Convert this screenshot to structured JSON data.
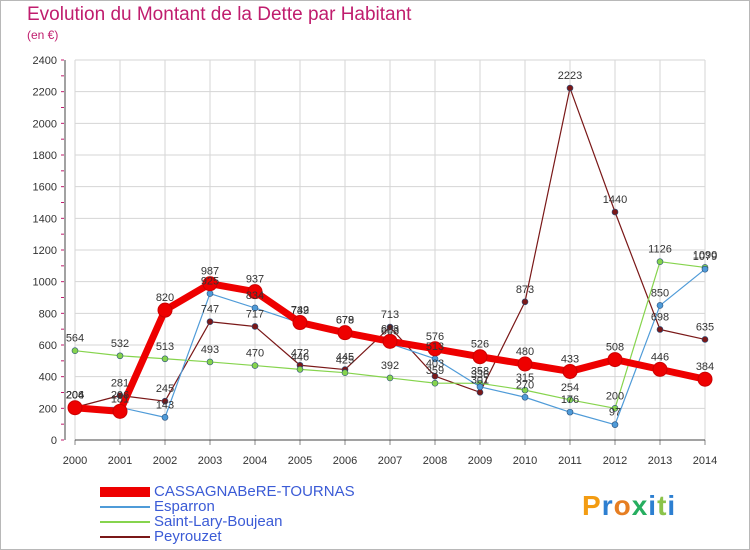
{
  "title": "Evolution du Montant de la Dette par Habitant",
  "subtitle": "(en €)",
  "logo": {
    "text": "Proxiti",
    "colors": [
      "#f39c12",
      "#2d7fd1",
      "#e67e22",
      "#27ae60",
      "#2d7fd1",
      "#8bc34a",
      "#2d7fd1"
    ]
  },
  "chart_data": {
    "type": "line",
    "title": "Evolution du Montant de la Dette par Habitant",
    "subtitle": "(en €)",
    "xlabel": "",
    "ylabel": "",
    "x": [
      2000,
      2001,
      2002,
      2003,
      2004,
      2005,
      2006,
      2007,
      2008,
      2009,
      2010,
      2011,
      2012,
      2013,
      2014
    ],
    "y_ticks": [
      0,
      200,
      400,
      600,
      800,
      1000,
      1200,
      1400,
      1600,
      1800,
      2000,
      2200,
      2400
    ],
    "ylim": [
      0,
      2400
    ],
    "grid": true,
    "legend_position": "bottom-left",
    "series": [
      {
        "name": "CASSAGNABeRE-TOURNAS",
        "color": "#ee0000",
        "values": [
          204,
          181,
          820,
          987,
          937,
          742,
          678,
          623,
          576,
          526,
          480,
          433,
          508,
          446,
          384
        ],
        "labels": [
          "204",
          "181",
          "820",
          "987",
          "937",
          "742",
          "678",
          "623",
          "576",
          "526",
          "480",
          "433",
          "508",
          "446",
          "384"
        ]
      },
      {
        "name": "Esparron",
        "color": "#4f9bd8",
        "values": [
          204,
          206,
          143,
          925,
          834,
          739,
          679,
          608,
          513,
          336,
          270,
          176,
          97,
          850,
          1079
        ],
        "labels": [
          "204",
          "206",
          "143",
          "925",
          "834",
          "739",
          "679",
          "608",
          "513",
          "336",
          "270",
          "176",
          "97",
          "850",
          "1079"
        ]
      },
      {
        "name": "Saint-Lary-Boujean",
        "color": "#86d44d",
        "values": [
          564,
          532,
          513,
          493,
          470,
          446,
          425,
          392,
          359,
          358,
          315,
          254,
          200,
          1126,
          1090
        ],
        "labels": [
          "564",
          "532",
          "513",
          "493",
          "470",
          "446",
          "425",
          "392",
          "359",
          "358",
          "315",
          "254",
          "200",
          "1126",
          "1090"
        ]
      },
      {
        "name": "Peyrouzet",
        "color": "#7a1818",
        "values": [
          206,
          281,
          245,
          747,
          717,
          472,
          445,
          713,
          403,
          301,
          873,
          2223,
          1440,
          698,
          635
        ],
        "labels": [
          "206",
          "281",
          "245",
          "747",
          "717",
          "472",
          "445",
          "713",
          "403",
          "301",
          "873",
          "2223",
          "1440",
          "698",
          "635"
        ]
      }
    ]
  }
}
